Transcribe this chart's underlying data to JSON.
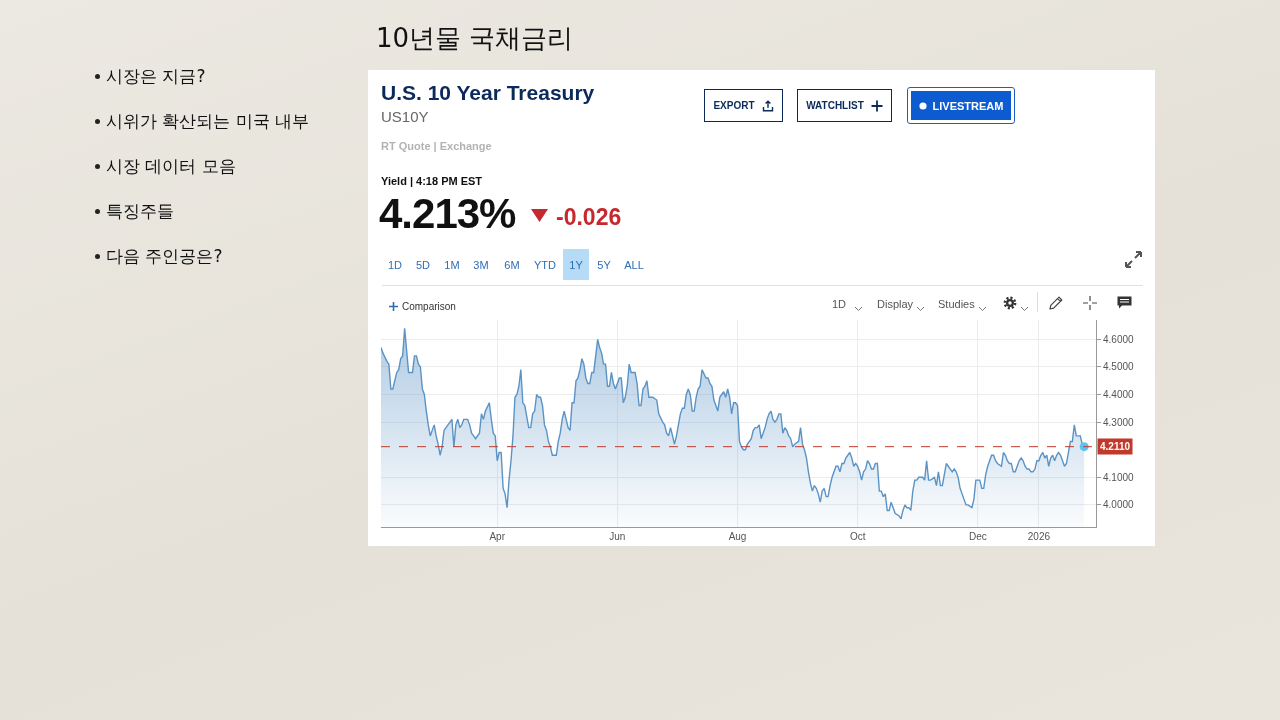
{
  "chart_data": {
    "type": "area",
    "title": "10년물 국채금리",
    "subtitle": "U.S. 10 Year Treasury",
    "annotations": [
      "시장은 지금?",
      "시위가 확산되는 미국 내부",
      "시장 데이터 모음",
      "특징주들",
      "다음 주인공은?",
      "US10Y",
      "RT Quote | Exchange",
      "EXPORT",
      "WATCHLIST",
      "LIVESTREAM",
      "Yield | 4:18 PM EST",
      "4.213%",
      "-0.026",
      "1D",
      "5D",
      "1M",
      "3M",
      "6M",
      "YTD",
      "1Y",
      "5Y",
      "ALL",
      "Comparison",
      "1D",
      "Display",
      "Studies"
    ],
    "x": [
      "2025-02-01",
      "2025-02-02",
      "2025-02-04",
      "2025-02-05",
      "2025-02-06",
      "2025-02-07",
      "2025-02-08",
      "2025-02-09",
      "2025-02-10",
      "2025-02-11",
      "2025-02-12",
      "2025-02-13",
      "2025-02-14",
      "2025-02-15",
      "2025-02-17",
      "2025-02-18",
      "2025-02-19",
      "2025-02-20",
      "2025-02-21",
      "2025-02-22",
      "2025-02-23",
      "2025-02-24",
      "2025-02-25",
      "2025-02-26",
      "2025-02-28",
      "2025-03-01",
      "2025-03-02",
      "2025-03-03",
      "2025-03-04",
      "2025-03-05",
      "2025-03-06",
      "2025-03-08",
      "2025-03-09",
      "2025-03-10",
      "2025-03-11",
      "2025-03-12",
      "2025-03-13",
      "2025-03-14",
      "2025-03-15",
      "2025-03-17",
      "2025-03-18",
      "2025-03-19",
      "2025-03-20",
      "2025-03-21",
      "2025-03-23",
      "2025-03-24",
      "2025-03-25",
      "2025-03-26",
      "2025-03-28",
      "2025-03-29",
      "2025-03-30",
      "2025-03-31",
      "2025-04-01",
      "2025-04-02",
      "2025-04-03",
      "2025-04-04",
      "2025-04-05",
      "2025-04-06",
      "2025-04-07",
      "2025-04-08",
      "2025-04-09",
      "2025-04-10",
      "2025-04-11",
      "2025-04-12",
      "2025-04-13",
      "2025-04-14",
      "2025-04-15",
      "2025-04-16",
      "2025-04-17",
      "2025-04-18",
      "2025-04-19",
      "2025-04-20",
      "2025-04-21",
      "2025-04-22",
      "2025-04-23",
      "2025-04-24",
      "2025-04-25",
      "2025-04-26",
      "2025-04-27",
      "2025-04-28",
      "2025-04-29",
      "2025-05-01",
      "2025-05-02",
      "2025-05-03",
      "2025-05-04",
      "2025-05-05",
      "2025-05-06",
      "2025-05-07",
      "2025-05-08",
      "2025-05-09",
      "2025-05-10",
      "2025-05-11",
      "2025-05-12",
      "2025-05-13",
      "2025-05-14",
      "2025-05-15",
      "2025-05-16",
      "2025-05-17",
      "2025-05-18",
      "2025-05-19",
      "2025-05-20",
      "2025-05-22",
      "2025-05-23",
      "2025-05-24",
      "2025-05-25",
      "2025-05-26",
      "2025-05-27",
      "2025-05-28",
      "2025-05-29",
      "2025-05-30",
      "2025-05-31",
      "2025-06-02",
      "2025-06-03",
      "2025-06-04",
      "2025-06-05",
      "2025-06-06",
      "2025-06-07",
      "2025-06-08",
      "2025-06-10",
      "2025-06-11",
      "2025-06-12",
      "2025-06-13",
      "2025-06-14",
      "2025-06-15",
      "2025-06-16",
      "2025-06-17",
      "2025-06-18",
      "2025-06-19",
      "2025-06-21",
      "2025-06-22",
      "2025-06-24",
      "2025-06-25",
      "2025-06-26",
      "2025-06-27",
      "2025-06-28",
      "2025-06-29",
      "2025-06-30",
      "2025-07-01",
      "2025-07-02",
      "2025-07-03",
      "2025-07-04",
      "2025-07-05",
      "2025-07-06",
      "2025-07-07",
      "2025-07-08",
      "2025-07-09",
      "2025-07-10",
      "2025-07-11",
      "2025-07-12",
      "2025-07-13",
      "2025-07-14",
      "2025-07-16",
      "2025-07-17",
      "2025-07-18",
      "2025-07-19",
      "2025-07-20",
      "2025-07-22",
      "2025-07-23",
      "2025-07-24",
      "2025-07-25",
      "2025-07-26",
      "2025-07-27",
      "2025-07-28",
      "2025-07-29",
      "2025-07-30",
      "2025-07-31",
      "2025-08-01",
      "2025-08-02",
      "2025-08-03",
      "2025-08-04",
      "2025-08-05",
      "2025-08-06",
      "2025-08-08",
      "2025-08-09",
      "2025-08-10",
      "2025-08-11",
      "2025-08-12",
      "2025-08-13",
      "2025-08-15",
      "2025-08-16",
      "2025-08-17",
      "2025-08-18",
      "2025-08-19",
      "2025-08-20",
      "2025-08-21",
      "2025-08-22",
      "2025-08-23",
      "2025-08-24",
      "2025-08-25",
      "2025-08-26",
      "2025-08-27",
      "2025-08-28",
      "2025-08-29",
      "2025-08-30",
      "2025-09-01",
      "2025-09-02",
      "2025-09-03",
      "2025-09-04",
      "2025-09-05",
      "2025-09-06",
      "2025-09-07",
      "2025-09-08",
      "2025-09-09",
      "2025-09-10",
      "2025-09-11",
      "2025-09-12",
      "2025-09-13",
      "2025-09-14",
      "2025-09-15",
      "2025-09-16",
      "2025-09-17",
      "2025-09-18",
      "2025-09-20",
      "2025-09-21",
      "2025-09-22",
      "2025-09-23",
      "2025-09-24",
      "2025-09-25",
      "2025-09-26",
      "2025-09-27",
      "2025-09-28",
      "2025-09-29",
      "2025-09-30",
      "2025-10-01",
      "2025-10-02",
      "2025-10-03",
      "2025-10-04",
      "2025-10-05",
      "2025-10-06",
      "2025-10-07",
      "2025-10-08",
      "2025-10-09",
      "2025-10-10",
      "2025-10-11",
      "2025-10-12",
      "2025-10-13",
      "2025-10-14",
      "2025-10-15",
      "2025-10-16",
      "2025-10-17",
      "2025-10-18",
      "2025-10-19",
      "2025-10-20",
      "2025-10-22",
      "2025-10-23",
      "2025-10-24",
      "2025-10-25",
      "2025-10-26",
      "2025-10-27",
      "2025-10-28",
      "2025-10-29",
      "2025-10-30",
      "2025-10-31",
      "2025-11-01",
      "2025-11-02",
      "2025-11-03",
      "2025-11-04",
      "2025-11-05",
      "2025-11-06",
      "2025-11-07",
      "2025-11-09",
      "2025-11-10",
      "2025-11-11",
      "2025-11-12",
      "2025-11-13",
      "2025-11-14",
      "2025-11-15",
      "2025-11-16",
      "2025-11-17",
      "2025-11-18",
      "2025-11-19",
      "2025-11-20",
      "2025-11-21",
      "2025-11-22",
      "2025-11-23",
      "2025-11-25",
      "2025-11-26",
      "2025-11-28",
      "2025-11-29",
      "2025-11-30",
      "2025-12-02",
      "2025-12-03",
      "2025-12-04",
      "2025-12-05",
      "2025-12-06",
      "2025-12-07",
      "2025-12-08",
      "2025-12-09",
      "2025-12-10",
      "2025-12-11",
      "2025-12-13",
      "2025-12-14",
      "2025-12-15",
      "2025-12-16",
      "2025-12-17",
      "2025-12-18",
      "2025-12-19",
      "2025-12-20",
      "2025-12-21",
      "2025-12-22",
      "2025-12-23",
      "2025-12-24",
      "2025-12-25",
      "2025-12-26",
      "2025-12-27",
      "2025-12-28",
      "2025-12-29",
      "2025-12-30",
      "2025-12-31",
      "2026-01-01",
      "2026-01-02",
      "2026-01-03",
      "2026-01-04",
      "2026-01-05",
      "2026-01-06",
      "2026-01-07",
      "2026-01-08",
      "2026-01-09",
      "2026-01-10",
      "2026-01-11",
      "2026-01-12",
      "2026-01-13",
      "2026-01-14",
      "2026-01-15",
      "2026-01-17",
      "2026-01-18",
      "2026-01-19",
      "2026-01-20",
      "2026-01-21",
      "2026-01-22",
      "2026-01-23",
      "2026-01-24"
    ],
    "series": [
      {
        "color": "#5b93c5",
        "values": [
          4.57,
          4.55,
          4.52,
          4.51,
          4.42,
          4.42,
          4.45,
          4.48,
          4.49,
          4.53,
          4.54,
          4.64,
          4.56,
          4.48,
          4.48,
          4.54,
          4.54,
          4.51,
          4.5,
          4.42,
          4.4,
          4.34,
          4.29,
          4.25,
          4.29,
          4.25,
          4.22,
          4.18,
          4.21,
          4.27,
          4.28,
          4.3,
          4.31,
          4.21,
          4.29,
          4.31,
          4.28,
          4.29,
          4.31,
          4.31,
          4.29,
          4.26,
          4.25,
          4.24,
          4.26,
          4.33,
          4.31,
          4.34,
          4.37,
          4.31,
          4.26,
          4.25,
          4.16,
          4.19,
          4.19,
          4.06,
          4.04,
          3.99,
          4.09,
          4.16,
          4.25,
          4.39,
          4.4,
          4.43,
          4.49,
          4.37,
          4.36,
          4.32,
          4.28,
          4.28,
          4.33,
          4.34,
          4.4,
          4.39,
          4.39,
          4.36,
          4.29,
          4.27,
          4.23,
          4.21,
          4.18,
          4.18,
          4.23,
          4.26,
          4.31,
          4.34,
          4.31,
          4.28,
          4.27,
          4.37,
          4.37,
          4.45,
          4.46,
          4.49,
          4.53,
          4.51,
          4.46,
          4.44,
          4.44,
          4.48,
          4.48,
          4.6,
          4.57,
          4.55,
          4.51,
          4.51,
          4.43,
          4.43,
          4.48,
          4.44,
          4.42,
          4.46,
          4.46,
          4.37,
          4.39,
          4.43,
          4.51,
          4.48,
          4.48,
          4.44,
          4.36,
          4.36,
          4.42,
          4.43,
          4.45,
          4.39,
          4.39,
          4.39,
          4.38,
          4.33,
          4.3,
          4.29,
          4.26,
          4.25,
          4.28,
          4.25,
          4.22,
          4.25,
          4.29,
          4.33,
          4.35,
          4.35,
          4.4,
          4.42,
          4.4,
          4.34,
          4.34,
          4.39,
          4.42,
          4.43,
          4.49,
          4.46,
          4.46,
          4.44,
          4.43,
          4.38,
          4.34,
          4.39,
          4.4,
          4.41,
          4.39,
          4.42,
          4.39,
          4.33,
          4.37,
          4.37,
          4.36,
          4.23,
          4.21,
          4.2,
          4.2,
          4.22,
          4.24,
          4.27,
          4.28,
          4.28,
          4.29,
          4.24,
          4.28,
          4.31,
          4.33,
          4.34,
          4.31,
          4.3,
          4.31,
          4.33,
          4.33,
          4.26,
          4.28,
          4.27,
          4.25,
          4.24,
          4.21,
          4.22,
          4.23,
          4.28,
          4.22,
          4.2,
          4.17,
          4.12,
          4.08,
          4.05,
          4.07,
          4.06,
          4.04,
          4.01,
          4.05,
          4.06,
          4.03,
          4.03,
          4.07,
          4.1,
          4.14,
          4.14,
          4.12,
          4.15,
          4.15,
          4.17,
          4.18,
          4.19,
          4.17,
          4.14,
          4.15,
          4.14,
          4.12,
          4.09,
          4.12,
          4.13,
          4.16,
          4.15,
          4.13,
          4.13,
          4.15,
          4.15,
          4.05,
          4.05,
          4.03,
          4.04,
          3.98,
          3.98,
          4.01,
          3.99,
          3.97,
          3.96,
          3.95,
          3.98,
          4.0,
          3.99,
          3.99,
          3.98,
          4.05,
          4.09,
          4.09,
          4.1,
          4.1,
          4.1,
          4.09,
          4.16,
          4.09,
          4.09,
          4.1,
          4.07,
          4.12,
          4.07,
          4.07,
          4.11,
          4.15,
          4.14,
          4.13,
          4.12,
          4.13,
          4.12,
          4.1,
          4.06,
          4.04,
          4.0,
          4.0,
          3.99,
          4.02,
          4.09,
          4.09,
          4.06,
          4.06,
          4.11,
          4.14,
          4.16,
          4.18,
          4.18,
          4.16,
          4.15,
          4.14,
          4.19,
          4.18,
          4.16,
          4.15,
          4.15,
          4.12,
          4.12,
          4.14,
          4.16,
          4.17,
          4.16,
          4.14,
          4.13,
          4.13,
          4.12,
          4.12,
          4.13,
          4.16,
          4.16,
          4.18,
          4.19,
          4.17,
          4.18,
          4.14,
          4.17,
          4.18,
          4.16,
          4.18,
          4.19,
          4.18,
          4.16,
          4.14,
          4.15,
          4.23,
          4.23,
          4.29,
          4.25,
          4.25,
          4.25,
          4.22,
          4.211
        ]
      },
      {
        "type": "scatter",
        "color": "#5cc3ef",
        "x": [
          "2026-01-24"
        ],
        "values": [
          4.211
        ]
      }
    ],
    "xlim": [
      "2025-02-01",
      "2026-01-30"
    ],
    "xticks": [
      {
        "value": "2025-04-01",
        "label": "Apr"
      },
      {
        "value": "2025-06-01",
        "label": "Jun"
      },
      {
        "value": "2025-08-01",
        "label": "Aug"
      },
      {
        "value": "2025-10-01",
        "label": "Oct"
      },
      {
        "value": "2025-12-01",
        "label": "Dec"
      },
      {
        "value": "2026-01-01",
        "label": "2026"
      }
    ],
    "ylim": [
      3.92,
      4.67
    ],
    "yticks": [
      {
        "value": 4.0,
        "label": "4.0000"
      },
      {
        "value": 4.1,
        "label": "4.1000"
      },
      {
        "value": 4.3,
        "label": "4.3000"
      },
      {
        "value": 4.4,
        "label": "4.4000"
      },
      {
        "value": 4.5,
        "label": "4.5000"
      },
      {
        "value": 4.6,
        "label": "4.6000"
      }
    ],
    "grid": true,
    "ref_lines": [
      {
        "axis": "y",
        "value": 4.211,
        "label": "4.2110",
        "color": "#c0392b",
        "line_style": "dashed"
      }
    ]
  }
}
